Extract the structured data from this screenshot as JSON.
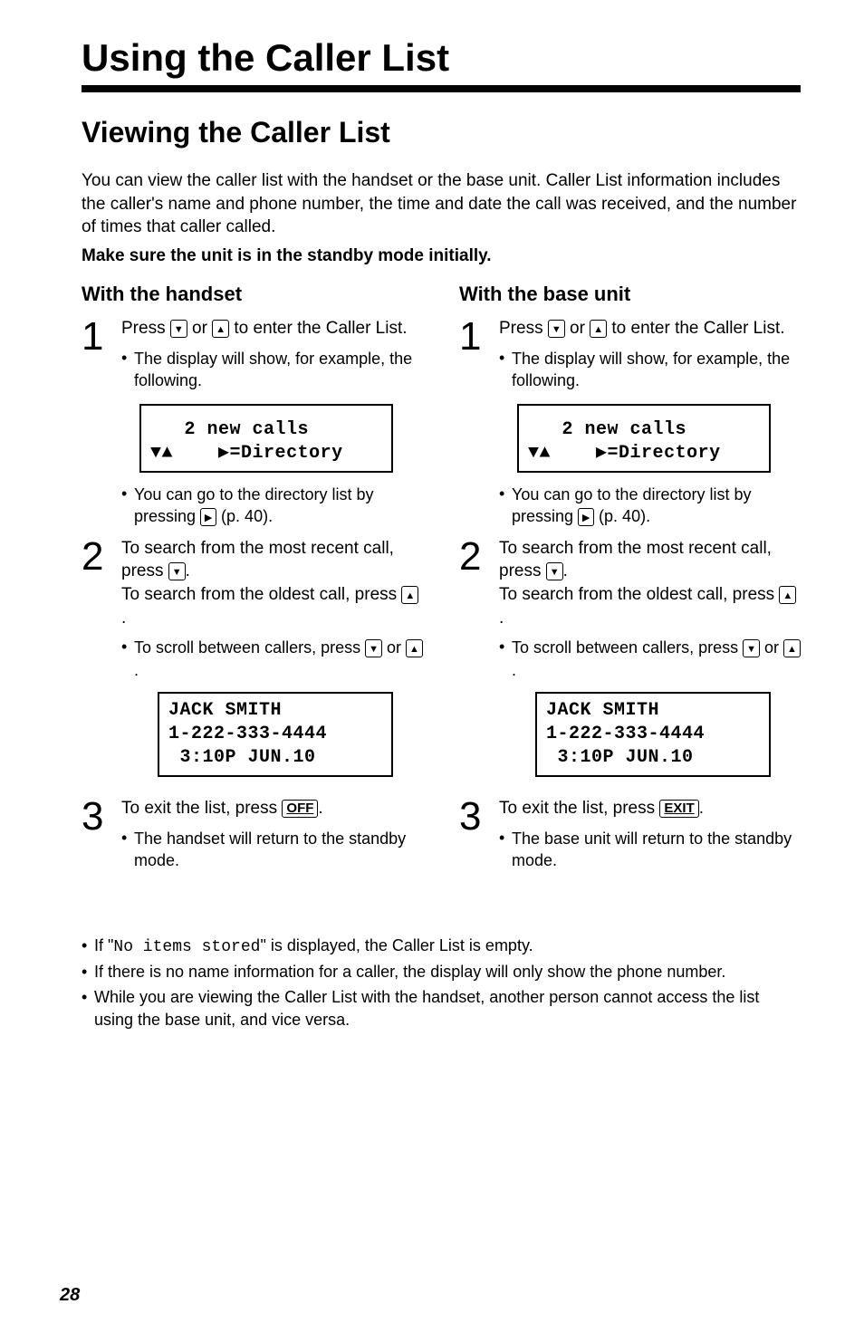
{
  "title": "Using the Caller List",
  "section": "Viewing the Caller List",
  "intro": "You can view the caller list with the handset or the base unit. Caller List information includes the caller's name and phone number, the time and date the call was received, and the number of times that caller called.",
  "intro_bold": "Make sure the unit is in the standby mode initially.",
  "handset": {
    "heading": "With the handset",
    "step1_a": "Press ",
    "step1_b": " or ",
    "step1_c": " to enter the Caller List.",
    "step1_bullet": "The display will show, for example, the following.",
    "lcd1_line1": "   2 new calls",
    "lcd1_line2": "▼▲    ▶=Directory",
    "step1_bullet2_a": "You can go to the directory list by pressing ",
    "step1_bullet2_b": " (p. 40).",
    "step2_a": "To search from the most recent call, press ",
    "step2_b": ".",
    "step2_c": "To search from the oldest call, press ",
    "step2_d": ".",
    "step2_bullet_a": "To scroll between callers, press ",
    "step2_bullet_b": " or ",
    "step2_bullet_c": ".",
    "lcd2_line1": "JACK SMITH",
    "lcd2_line2": "1-222-333-4444",
    "lcd2_line3": " 3:10P JUN.10",
    "step3_a": "To exit the list, press ",
    "step3_key": "OFF",
    "step3_b": ".",
    "step3_bullet": "The handset will return to the standby mode."
  },
  "base": {
    "heading": "With the base unit",
    "step1_a": "Press ",
    "step1_b": " or ",
    "step1_c": " to enter the Caller List.",
    "step1_bullet": "The display will show, for example, the following.",
    "lcd1_line1": "   2 new calls",
    "lcd1_line2": "▼▲    ▶=Directory",
    "step1_bullet2_a": "You can go to the directory list by pressing ",
    "step1_bullet2_b": " (p. 40).",
    "step2_a": "To search from the most recent call, press ",
    "step2_b": ".",
    "step2_c": "To search from the oldest call, press ",
    "step2_d": ".",
    "step2_bullet_a": "To scroll between callers, press ",
    "step2_bullet_b": " or ",
    "step2_bullet_c": ".",
    "lcd2_line1": "JACK SMITH",
    "lcd2_line2": "1-222-333-4444",
    "lcd2_line3": " 3:10P JUN.10",
    "step3_a": "To exit the list, press ",
    "step3_key": "EXIT",
    "step3_b": ".",
    "step3_bullet": "The base unit will return to the standby mode."
  },
  "notes": {
    "n1_a": "If \"",
    "n1_mono": "No items stored",
    "n1_b": "\" is displayed, the Caller List is empty.",
    "n2": "If there is no name information for a caller, the display will only show the phone number.",
    "n3": "While you are viewing the Caller List with the handset, another person cannot access the list using the base unit, and vice versa."
  },
  "page_number": "28"
}
